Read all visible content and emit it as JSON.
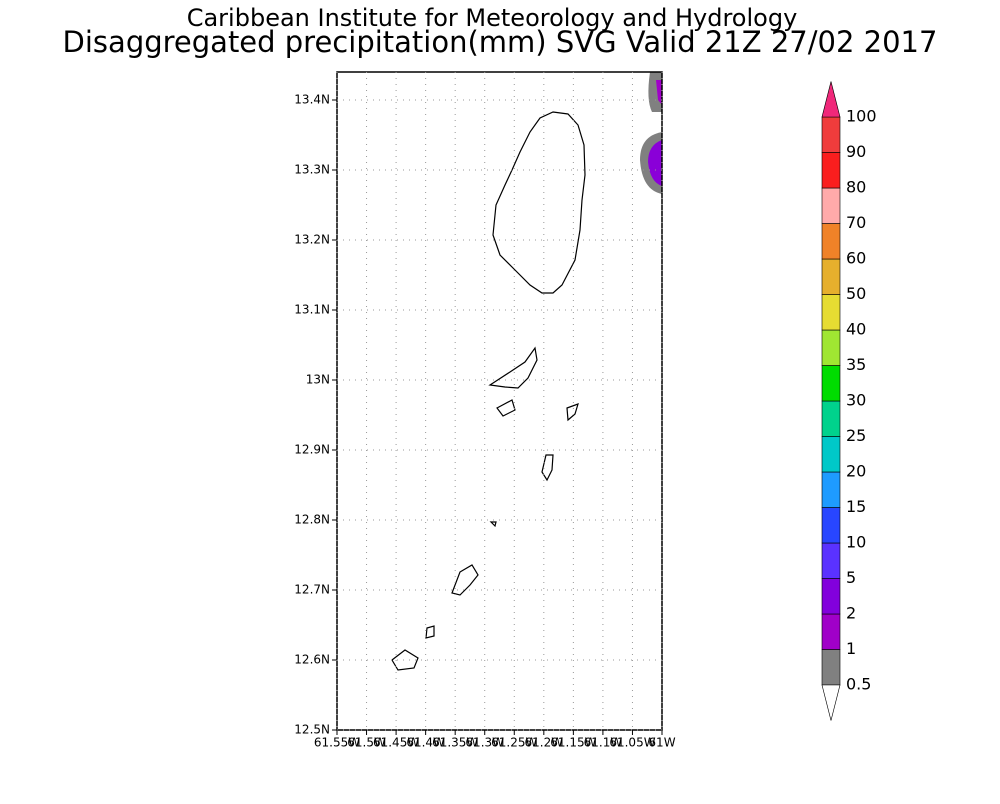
{
  "chart_data": {
    "type": "map",
    "title": "Caribbean Institute for Meteorology and Hydrology",
    "subtitle": "Disaggregated precipitation(mm) SVG Valid 21Z 27/02 2017",
    "ylim": [
      12.5,
      13.44
    ],
    "yticks": [
      {
        "value": 12.5,
        "label": "12.5N"
      },
      {
        "value": 12.6,
        "label": "12.6N"
      },
      {
        "value": 12.7,
        "label": "12.7N"
      },
      {
        "value": 12.8,
        "label": "12.8N"
      },
      {
        "value": 12.9,
        "label": "12.9N"
      },
      {
        "value": 13,
        "label": "13N"
      },
      {
        "value": 13.1,
        "label": "13.1N"
      },
      {
        "value": 13.2,
        "label": "13.2N"
      },
      {
        "value": 13.3,
        "label": "13.3N"
      },
      {
        "value": 13.4,
        "label": "13.4N"
      }
    ],
    "xlim": [
      61.55,
      61
    ],
    "xticks": [
      {
        "value": 61.55,
        "label": "61.55W"
      },
      {
        "value": 61.5,
        "label": "61.5W"
      },
      {
        "value": 61.45,
        "label": "61.45W"
      },
      {
        "value": 61.4,
        "label": "61.4W"
      },
      {
        "value": 61.35,
        "label": "61.35W"
      },
      {
        "value": 61.3,
        "label": "61.3W"
      },
      {
        "value": 61.25,
        "label": "61.25W"
      },
      {
        "value": 61.2,
        "label": "61.2W"
      },
      {
        "value": 61.15,
        "label": "61.15W"
      },
      {
        "value": 61.1,
        "label": "61.1W"
      },
      {
        "value": 61.05,
        "label": "61.05W"
      },
      {
        "value": 61,
        "label": "61W"
      }
    ],
    "grid": true,
    "colorbar": {
      "levels": [
        0.5,
        1,
        2,
        5,
        10,
        15,
        20,
        25,
        30,
        35,
        40,
        50,
        60,
        70,
        80,
        90,
        100
      ],
      "colors": [
        "#808080",
        "#a000c8",
        "#8200dc",
        "#5a32ff",
        "#2846ff",
        "#1e9bff",
        "#00c8c8",
        "#00d28c",
        "#00dc00",
        "#a0e632",
        "#e6dc32",
        "#e6af2d",
        "#f08228",
        "#ffaaaa",
        "#fa1e1e",
        "#f03c3c"
      ],
      "under_color": "#ffffff",
      "over_color": "#f0287a"
    }
  }
}
